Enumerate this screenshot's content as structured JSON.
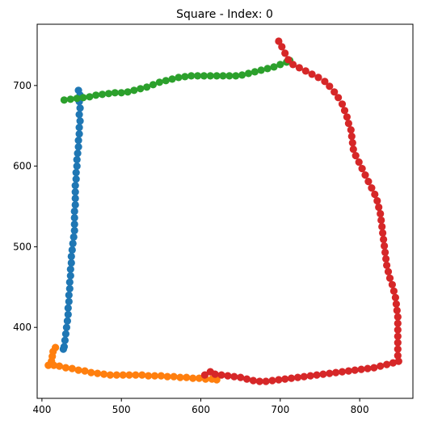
{
  "chart_data": {
    "type": "scatter",
    "title": "Square - Index: 0",
    "xlabel": "",
    "ylabel": "",
    "xlim": [
      394,
      867
    ],
    "ylim": [
      312,
      776
    ],
    "xticks": [
      400,
      500,
      600,
      700,
      800
    ],
    "yticks": [
      400,
      500,
      600,
      700
    ],
    "grid": false,
    "series": [
      {
        "color": "#1f77b4",
        "points": [
          [
            446,
            694
          ],
          [
            448,
            688
          ],
          [
            447,
            680
          ],
          [
            448,
            672
          ],
          [
            447,
            664
          ],
          [
            448,
            656
          ],
          [
            447,
            648
          ],
          [
            447,
            640
          ],
          [
            446,
            632
          ],
          [
            446,
            624
          ],
          [
            445,
            616
          ],
          [
            444,
            608
          ],
          [
            444,
            600
          ],
          [
            443,
            592
          ],
          [
            443,
            584
          ],
          [
            442,
            576
          ],
          [
            442,
            568
          ],
          [
            442,
            560
          ],
          [
            442,
            552
          ],
          [
            441,
            544
          ],
          [
            441,
            536
          ],
          [
            441,
            528
          ],
          [
            441,
            520
          ],
          [
            440,
            512
          ],
          [
            439,
            504
          ],
          [
            438,
            496
          ],
          [
            437,
            488
          ],
          [
            437,
            480
          ],
          [
            436,
            472
          ],
          [
            436,
            464
          ],
          [
            435,
            456
          ],
          [
            435,
            448
          ],
          [
            434,
            440
          ],
          [
            434,
            432
          ],
          [
            433,
            424
          ],
          [
            433,
            416
          ],
          [
            432,
            408
          ],
          [
            431,
            400
          ],
          [
            430,
            392
          ],
          [
            429,
            384
          ],
          [
            428,
            376
          ],
          [
            427,
            373
          ]
        ]
      },
      {
        "color": "#ff7f0e",
        "points": [
          [
            417,
            375
          ],
          [
            414,
            370
          ],
          [
            413,
            364
          ],
          [
            412,
            358
          ],
          [
            408,
            353
          ],
          [
            415,
            353
          ],
          [
            422,
            352
          ],
          [
            430,
            350
          ],
          [
            438,
            349
          ],
          [
            446,
            347
          ],
          [
            454,
            346
          ],
          [
            462,
            344
          ],
          [
            470,
            343
          ],
          [
            478,
            342
          ],
          [
            486,
            341
          ],
          [
            494,
            341
          ],
          [
            502,
            341
          ],
          [
            510,
            341
          ],
          [
            518,
            341
          ],
          [
            526,
            341
          ],
          [
            534,
            340
          ],
          [
            542,
            340
          ],
          [
            550,
            340
          ],
          [
            558,
            339
          ],
          [
            566,
            339
          ],
          [
            574,
            338
          ],
          [
            582,
            338
          ],
          [
            590,
            337
          ],
          [
            598,
            337
          ],
          [
            606,
            336
          ],
          [
            614,
            336
          ],
          [
            620,
            335
          ]
        ]
      },
      {
        "color": "#2ca02c",
        "points": [
          [
            428,
            682
          ],
          [
            436,
            683
          ],
          [
            444,
            684
          ],
          [
            452,
            685
          ],
          [
            460,
            686
          ],
          [
            468,
            688
          ],
          [
            476,
            689
          ],
          [
            484,
            690
          ],
          [
            492,
            691
          ],
          [
            500,
            691
          ],
          [
            508,
            692
          ],
          [
            516,
            694
          ],
          [
            524,
            696
          ],
          [
            532,
            698
          ],
          [
            540,
            701
          ],
          [
            548,
            704
          ],
          [
            556,
            706
          ],
          [
            564,
            708
          ],
          [
            572,
            710
          ],
          [
            580,
            711
          ],
          [
            588,
            712
          ],
          [
            596,
            712
          ],
          [
            604,
            712
          ],
          [
            612,
            712
          ],
          [
            620,
            712
          ],
          [
            628,
            712
          ],
          [
            636,
            712
          ],
          [
            644,
            712
          ],
          [
            652,
            713
          ],
          [
            660,
            715
          ],
          [
            668,
            717
          ],
          [
            676,
            719
          ],
          [
            684,
            721
          ],
          [
            692,
            723
          ],
          [
            700,
            726
          ],
          [
            708,
            729
          ],
          [
            712,
            731
          ]
        ]
      },
      {
        "color": "#d62728",
        "points": [
          [
            698,
            755
          ],
          [
            702,
            748
          ],
          [
            706,
            740
          ],
          [
            710,
            732
          ],
          [
            716,
            726
          ],
          [
            724,
            722
          ],
          [
            732,
            718
          ],
          [
            740,
            714
          ],
          [
            748,
            710
          ],
          [
            756,
            705
          ],
          [
            762,
            699
          ],
          [
            768,
            692
          ],
          [
            773,
            685
          ],
          [
            778,
            677
          ],
          [
            781,
            669
          ],
          [
            784,
            661
          ],
          [
            786,
            653
          ],
          [
            789,
            645
          ],
          [
            790,
            637
          ],
          [
            791,
            629
          ],
          [
            792,
            621
          ],
          [
            795,
            613
          ],
          [
            799,
            605
          ],
          [
            803,
            597
          ],
          [
            807,
            589
          ],
          [
            811,
            581
          ],
          [
            815,
            573
          ],
          [
            819,
            565
          ],
          [
            822,
            557
          ],
          [
            824,
            549
          ],
          [
            826,
            541
          ],
          [
            827,
            533
          ],
          [
            828,
            525
          ],
          [
            829,
            517
          ],
          [
            830,
            509
          ],
          [
            831,
            501
          ],
          [
            832,
            493
          ],
          [
            833,
            485
          ],
          [
            834,
            477
          ],
          [
            836,
            469
          ],
          [
            838,
            461
          ],
          [
            841,
            453
          ],
          [
            843,
            445
          ],
          [
            845,
            437
          ],
          [
            846,
            429
          ],
          [
            847,
            421
          ],
          [
            848,
            413
          ],
          [
            848,
            405
          ],
          [
            848,
            397
          ],
          [
            848,
            389
          ],
          [
            848,
            381
          ],
          [
            848,
            373
          ],
          [
            848,
            365
          ],
          [
            849,
            358
          ],
          [
            842,
            356
          ],
          [
            834,
            354
          ],
          [
            826,
            352
          ],
          [
            818,
            350
          ],
          [
            810,
            349
          ],
          [
            802,
            348
          ],
          [
            794,
            347
          ],
          [
            786,
            346
          ],
          [
            778,
            345
          ],
          [
            770,
            344
          ],
          [
            762,
            343
          ],
          [
            754,
            342
          ],
          [
            746,
            341
          ],
          [
            738,
            340
          ],
          [
            730,
            339
          ],
          [
            722,
            338
          ],
          [
            714,
            337
          ],
          [
            706,
            336
          ],
          [
            698,
            335
          ],
          [
            690,
            334
          ],
          [
            682,
            333
          ],
          [
            674,
            333
          ],
          [
            666,
            334
          ],
          [
            658,
            336
          ],
          [
            650,
            338
          ],
          [
            642,
            339
          ],
          [
            634,
            340
          ],
          [
            626,
            341
          ],
          [
            618,
            342
          ],
          [
            612,
            345
          ],
          [
            605,
            341
          ]
        ]
      }
    ]
  }
}
